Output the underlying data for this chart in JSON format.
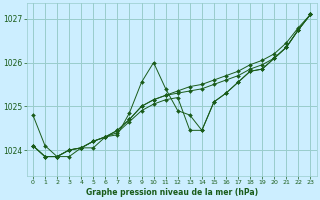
{
  "title": "Graphe pression niveau de la mer (hPa)",
  "bg_color": "#cceeff",
  "grid_color": "#99cccc",
  "line_color": "#1a5c1a",
  "marker_color": "#1a5c1a",
  "xlim": [
    -0.5,
    23.5
  ],
  "ylim": [
    1023.4,
    1027.35
  ],
  "yticks": [
    1024,
    1025,
    1026,
    1027
  ],
  "xticks": [
    0,
    1,
    2,
    3,
    4,
    5,
    6,
    7,
    8,
    9,
    10,
    11,
    12,
    13,
    14,
    15,
    16,
    17,
    18,
    19,
    20,
    21,
    22,
    23
  ],
  "series": [
    [
      1024.8,
      1024.1,
      1023.85,
      1023.85,
      1024.05,
      1024.05,
      1024.3,
      1024.35,
      1024.85,
      1025.55,
      1026.0,
      1025.4,
      1024.9,
      1024.8,
      1024.45,
      1025.1,
      1025.3,
      1025.55,
      1025.8,
      1025.85,
      1026.1,
      1026.35,
      1026.75,
      1027.1
    ],
    [
      1024.1,
      1023.85,
      1023.85,
      1024.0,
      1024.05,
      1024.2,
      1024.3,
      1024.4,
      1024.65,
      1024.9,
      1025.05,
      1025.15,
      1025.2,
      1024.45,
      1024.45,
      1025.1,
      1025.3,
      1025.55,
      1025.8,
      1025.85,
      1026.1,
      1026.35,
      1026.75,
      1027.1
    ],
    [
      1024.1,
      1023.85,
      1023.85,
      1024.0,
      1024.05,
      1024.2,
      1024.3,
      1024.45,
      1024.7,
      1025.0,
      1025.15,
      1025.25,
      1025.3,
      1025.35,
      1025.4,
      1025.5,
      1025.6,
      1025.7,
      1025.85,
      1025.95,
      1026.1,
      1026.35,
      1026.75,
      1027.1
    ],
    [
      1024.1,
      1023.85,
      1023.85,
      1024.0,
      1024.05,
      1024.2,
      1024.3,
      1024.45,
      1024.7,
      1025.0,
      1025.15,
      1025.25,
      1025.35,
      1025.45,
      1025.5,
      1025.6,
      1025.7,
      1025.8,
      1025.95,
      1026.05,
      1026.2,
      1026.45,
      1026.8,
      1027.1
    ]
  ]
}
